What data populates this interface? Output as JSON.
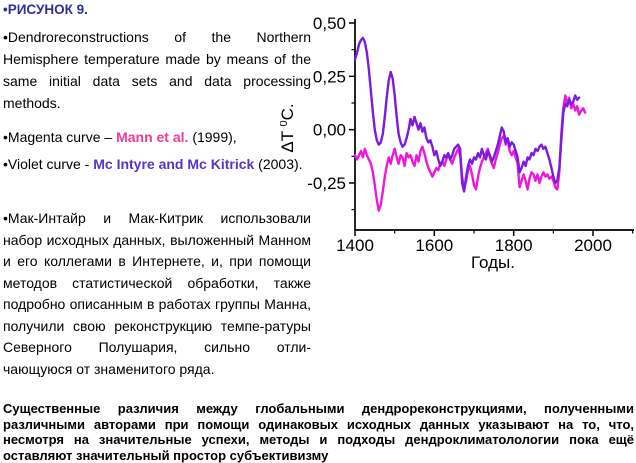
{
  "colors": {
    "title_blue": "#2E2EA0",
    "mann_authors": "#EE3A9C",
    "mcintyre_authors": "#5535C8",
    "curve_magenta": "#EE18DD",
    "curve_violet": "#7A1BDD",
    "axis": "#000000"
  },
  "left": {
    "title": "•РИСУНОК 9.",
    "para_en": "•Dendroreconstructions of the Northern Hemisphere temperature made by means of the same initial data sets and data processing methods.",
    "magenta_line": {
      "prefix": "•Magenta curve – ",
      "authors": "Mann et al.",
      "suffix": " (1999),"
    },
    "violet_line": {
      "prefix": "•Violet curve - ",
      "authors": "Mc Intyre and Mc Kitrick",
      "suffix": " (2003)."
    },
    "para_ru": "•Мак-Интайр и Мак-Китрик использовали набор исходных данных, выложенный Манном и его коллегами в Интернете, и, при помощи методов статистической обработки, также подробно описанным в работах группы Манна, получили свою реконструкцию темпе-ратуры Северного Полушария, сильно отли-чающуюся от знаменитого ряда."
  },
  "footer": {
    "text": "Существенные различия между глобальными  дендрореконструкциями, полученными различными авторами при помощи одинаковых исходных данных указывают на то, что, несмотря на значительные успехи, методы и подходы дендроклиматолологии пока ещё оставляют значительный простор субъективизму"
  },
  "chart_data": {
    "type": "line",
    "title": "",
    "xlabel": "Годы.",
    "ylabel": "ΔT ⁰C.",
    "xlim": [
      1400,
      2100
    ],
    "ylim": [
      -0.47,
      0.53
    ],
    "grid": false,
    "legend": "none",
    "x_major_ticks": [
      1400,
      1600,
      1800,
      2000
    ],
    "x_major_labels": [
      "1400",
      "1600",
      "1800",
      "2000"
    ],
    "x_minor_ticks": [
      1500,
      1700,
      1900,
      2100
    ],
    "y_major_ticks": [
      0.5,
      0.25,
      0.0,
      -0.25
    ],
    "y_major_labels": [
      "0,50",
      "0,25",
      "0,00",
      "-0,25"
    ],
    "y_minor_ticks": [
      0.375,
      0.125,
      -0.125,
      -0.375
    ],
    "series": [
      {
        "name": "Mann et al. (1999)",
        "color": "#EE18DD",
        "x_start": 1400,
        "x_step": 5,
        "values": [
          -0.12,
          -0.14,
          -0.12,
          -0.1,
          -0.13,
          -0.09,
          -0.12,
          -0.14,
          -0.16,
          -0.2,
          -0.26,
          -0.33,
          -0.38,
          -0.35,
          -0.29,
          -0.22,
          -0.17,
          -0.13,
          -0.16,
          -0.12,
          -0.09,
          -0.13,
          -0.16,
          -0.12,
          -0.13,
          -0.17,
          -0.11,
          -0.13,
          -0.12,
          -0.15,
          -0.17,
          -0.12,
          -0.15,
          -0.1,
          -0.08,
          -0.11,
          -0.15,
          -0.18,
          -0.2,
          -0.22,
          -0.2,
          -0.18,
          -0.19,
          -0.16,
          -0.15,
          -0.17,
          -0.14,
          -0.12,
          -0.14,
          -0.16,
          -0.13,
          -0.11,
          -0.09,
          -0.12,
          -0.22,
          -0.28,
          -0.24,
          -0.19,
          -0.17,
          -0.21,
          -0.26,
          -0.28,
          -0.22,
          -0.18,
          -0.15,
          -0.13,
          -0.11,
          -0.09,
          -0.13,
          -0.16,
          -0.18,
          -0.14,
          -0.11,
          -0.07,
          -0.04,
          -0.03,
          -0.07,
          -0.05,
          -0.1,
          -0.12,
          -0.1,
          -0.13,
          -0.16,
          -0.27,
          -0.24,
          -0.21,
          -0.24,
          -0.28,
          -0.23,
          -0.2,
          -0.21,
          -0.24,
          -0.21,
          -0.25,
          -0.22,
          -0.2,
          -0.22,
          -0.21,
          -0.23,
          -0.22,
          -0.24,
          -0.27,
          -0.28,
          -0.2,
          -0.02,
          0.1,
          0.16,
          0.12,
          0.15,
          0.1,
          0.12,
          0.09,
          0.11,
          0.07,
          0.09,
          0.1,
          0.08
        ]
      },
      {
        "name": "Mc Intyre and Mc Kitrick (2003)",
        "color": "#7A1BDD",
        "x_start": 1400,
        "x_step": 5,
        "values": [
          0.33,
          0.36,
          0.4,
          0.42,
          0.43,
          0.41,
          0.36,
          0.28,
          0.18,
          0.08,
          0.0,
          -0.05,
          -0.07,
          -0.06,
          -0.02,
          0.06,
          0.15,
          0.23,
          0.27,
          0.24,
          0.16,
          0.06,
          -0.02,
          -0.06,
          -0.08,
          -0.07,
          -0.04,
          0.0,
          0.05,
          0.02,
          0.06,
          0.03,
          0.0,
          0.03,
          -0.01,
          0.01,
          -0.04,
          -0.06,
          -0.05,
          -0.08,
          -0.12,
          -0.1,
          -0.14,
          -0.17,
          -0.15,
          -0.12,
          -0.13,
          -0.11,
          -0.14,
          -0.12,
          -0.09,
          -0.08,
          -0.07,
          -0.09,
          -0.25,
          -0.29,
          -0.22,
          -0.17,
          -0.14,
          -0.16,
          -0.13,
          -0.14,
          -0.11,
          -0.13,
          -0.09,
          -0.12,
          -0.14,
          -0.1,
          -0.12,
          -0.15,
          -0.13,
          -0.1,
          -0.07,
          -0.03,
          0.01,
          -0.01,
          -0.06,
          -0.04,
          -0.08,
          -0.06,
          -0.07,
          -0.1,
          -0.13,
          -0.2,
          -0.18,
          -0.15,
          -0.17,
          -0.13,
          -0.14,
          -0.11,
          -0.12,
          -0.09,
          -0.1,
          -0.08,
          -0.07,
          -0.09,
          -0.08,
          -0.11,
          -0.14,
          -0.18,
          -0.22,
          -0.25,
          -0.24,
          -0.18,
          -0.05,
          0.08,
          0.12,
          0.11,
          0.14,
          0.12,
          0.13,
          0.16,
          0.14,
          0.15
        ]
      }
    ]
  }
}
